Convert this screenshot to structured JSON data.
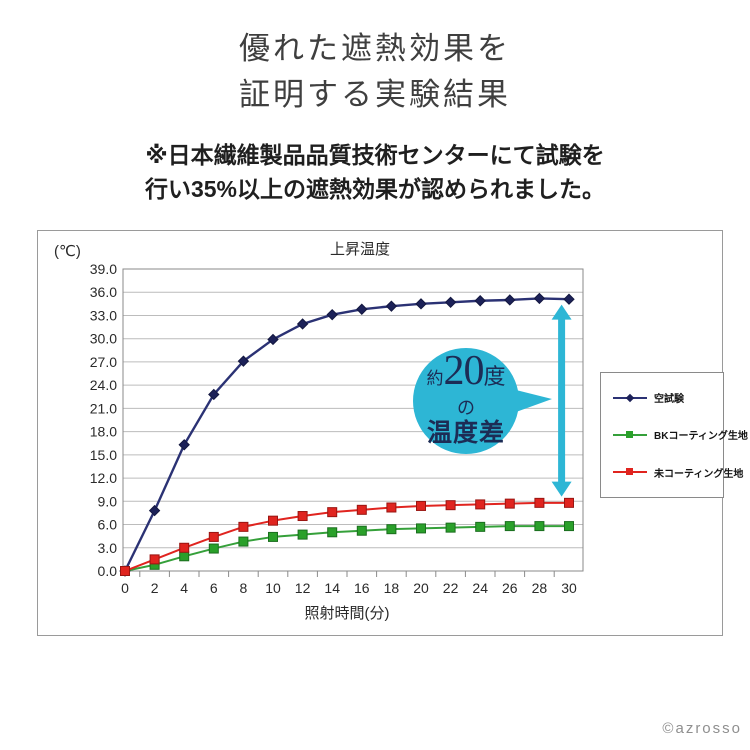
{
  "page": {
    "title_line1": "優れた遮熱効果を",
    "title_line2": "証明する実験結果",
    "subtitle_line1": "※日本繊維製品品質技術センターにて試験を",
    "subtitle_line2": "行い35%以上の遮熱効果が認められました。",
    "copyright": "©azrosso"
  },
  "chart_data": {
    "type": "line",
    "title": "上昇温度",
    "y_unit_label": "(℃)",
    "xlabel": "照射時間(分)",
    "ylim": [
      0,
      39
    ],
    "y_tick_step": 3,
    "y_ticks": [
      "0.0",
      "3.0",
      "6.0",
      "9.0",
      "12.0",
      "15.0",
      "18.0",
      "21.0",
      "24.0",
      "27.0",
      "30.0",
      "33.0",
      "36.0",
      "39.0"
    ],
    "x": [
      0,
      2,
      4,
      6,
      8,
      10,
      12,
      14,
      16,
      18,
      20,
      22,
      24,
      26,
      28,
      30
    ],
    "grid": true,
    "legend_position": "right",
    "series": [
      {
        "key": "blank-test",
        "name": "空試験",
        "values": [
          0.0,
          7.8,
          16.3,
          22.8,
          27.1,
          29.9,
          31.9,
          33.1,
          33.8,
          34.2,
          34.5,
          34.7,
          34.9,
          35.0,
          35.2,
          35.1
        ],
        "line_color": "#2b3274",
        "line_width": 2.4,
        "marker": "diamond",
        "marker_color": "#1c2158",
        "marker_stroke": "#13173f"
      },
      {
        "key": "bk-coated-fabric",
        "name": "BKコーティング生地",
        "values": [
          0.0,
          0.8,
          1.9,
          2.9,
          3.8,
          4.4,
          4.7,
          5.0,
          5.2,
          5.4,
          5.5,
          5.6,
          5.7,
          5.8,
          5.8,
          5.8
        ],
        "line_color": "#35a03a",
        "line_width": 2,
        "marker": "square",
        "marker_color": "#2aa02a",
        "marker_stroke": "#1b6e1f"
      },
      {
        "key": "uncoated-fabric",
        "name": "未コーティング生地",
        "values": [
          0.0,
          1.5,
          3.0,
          4.4,
          5.7,
          6.5,
          7.1,
          7.6,
          7.9,
          8.2,
          8.4,
          8.5,
          8.6,
          8.7,
          8.8,
          8.8
        ],
        "line_color": "#e0241f",
        "line_width": 2,
        "marker": "square",
        "marker_color": "#e0241f",
        "marker_stroke": "#991511"
      }
    ]
  },
  "annotation": {
    "prefix": "約",
    "value": "20",
    "suffix": "度",
    "mid": "の",
    "main": "温度差",
    "color": "#2db6d5",
    "text_color": "#1c2c55",
    "arrow": {
      "x": 29.5,
      "y_from": 9.6,
      "y_to": 34.4,
      "color": "#2db6d5"
    }
  }
}
